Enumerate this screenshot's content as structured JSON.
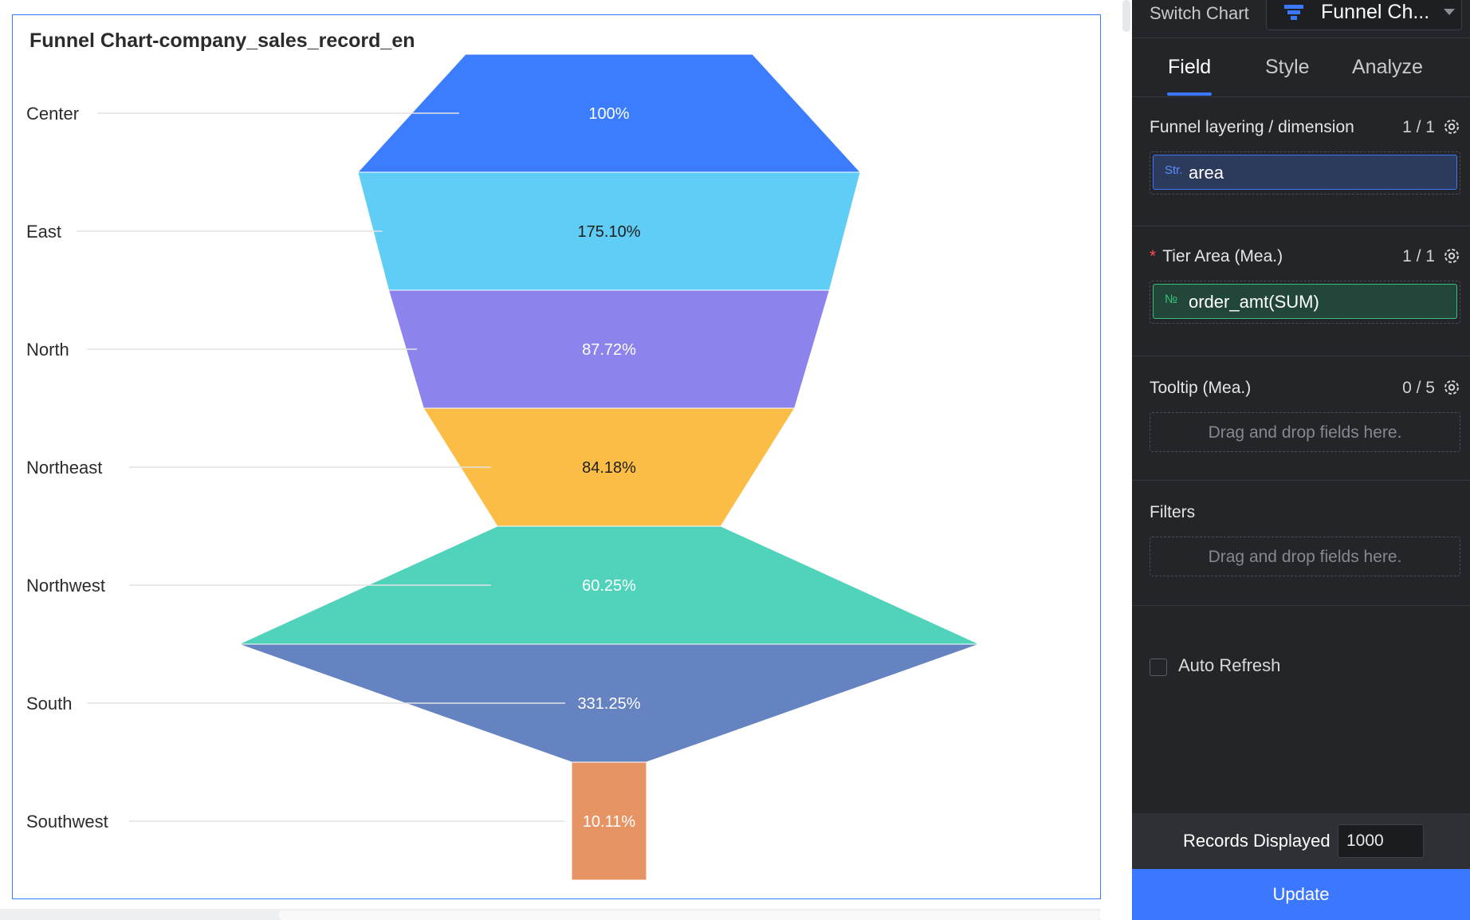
{
  "chart_card": {
    "title": "Funnel Chart-company_sales_record_en"
  },
  "chart_data": {
    "type": "funnel",
    "title": "Funnel Chart-company_sales_record_en",
    "categories": [
      "Center",
      "East",
      "North",
      "Northeast",
      "Northwest",
      "South",
      "Southwest"
    ],
    "conversion_labels": [
      "100%",
      "175.10%",
      "87.72%",
      "84.18%",
      "60.25%",
      "331.25%",
      "10.11%"
    ],
    "relative_values": [
      1.0,
      1.751,
      1.536,
      1.293,
      0.779,
      2.581,
      0.261
    ],
    "colors": [
      "#3c7dff",
      "#5fcdf5",
      "#8c84ec",
      "#fcbd47",
      "#51d2bb",
      "#6683c1",
      "#e79465"
    ],
    "label_colors": [
      "#ffffff",
      "#1e1e1e",
      "#ffffff",
      "#1e1e1e",
      "#ffffff",
      "#ffffff",
      "#ffffff"
    ]
  },
  "panel": {
    "switch_label": "Switch Chart",
    "chart_type": "Funnel Ch...",
    "tabs": [
      {
        "label": "Field",
        "active": true
      },
      {
        "label": "Style",
        "active": false
      },
      {
        "label": "Analyze",
        "active": false
      }
    ],
    "dimension": {
      "title": "Funnel layering / dimension",
      "count": "1 / 1",
      "field_type": "Str.",
      "field": "area"
    },
    "measure": {
      "required_mark": "*",
      "title": "Tier Area (Mea.)",
      "count": "1 / 1",
      "field_type": "№",
      "field": "order_amt(SUM)"
    },
    "tooltip": {
      "title": "Tooltip (Mea.)",
      "count": "0 / 5",
      "hint": "Drag and drop fields here."
    },
    "filters": {
      "title": "Filters",
      "hint": "Drag and drop fields here."
    },
    "auto_refresh": {
      "label": "Auto Refresh",
      "checked": false
    },
    "records": {
      "label": "Records Displayed",
      "value": "1000"
    },
    "update_label": "Update"
  },
  "colors": {
    "accent": "#3c78ff",
    "panel_bg": "#232529",
    "measure_green": "#3ac07c"
  }
}
